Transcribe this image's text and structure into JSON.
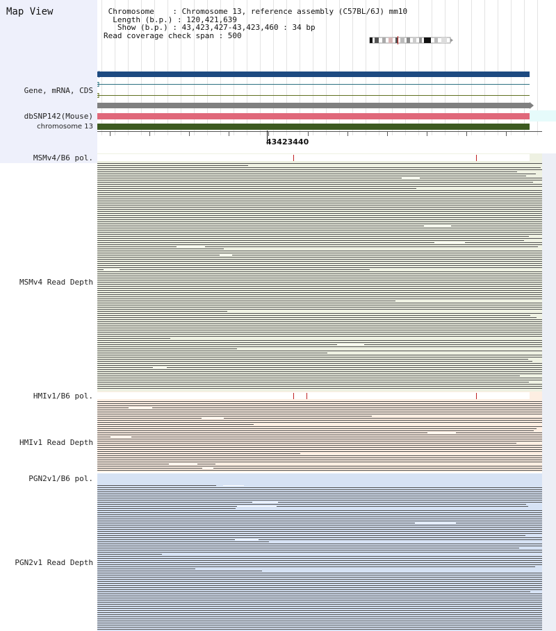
{
  "header": {
    "title": "Map View",
    "info_lines": [
      " Chromosome    : Chromosome 13, reference assembly (C57BL/6J) mm10",
      "  Length (b.p.) : 120,421,639",
      "   Show (b.p.) : 43,423,427-43,423,460 : 34 bp",
      "Read coverage check span : 500"
    ]
  },
  "ruler": {
    "position_label": "43423440"
  },
  "tracks": {
    "gene": "Gene, mRNA, CDS",
    "dbsnp": "dbSNP142(Mouse)",
    "chromosome": "chromosome 13",
    "msm_pol": "MSMv4/B6 pol.",
    "msm_depth": "MSMv4 Read Depth",
    "hmi_pol": "HMIv1/B6 pol.",
    "hmi_depth": "HMIv1 Read Depth",
    "pgn_pol": "PGN2v1/B6 pol.",
    "pgn_depth": "PGN2v1 Read Depth"
  },
  "colors": {
    "left_panel": "#eef0fb",
    "gene_bar": "#1d4a80",
    "dbsnp_bar": "#e0687a",
    "chromosome_bar": "#3c5a20",
    "gray_bar": "#808080",
    "msm_bg": "#eef1e2",
    "hmi_bg": "#fdeee2",
    "pgn_bg": "#d6e2f4",
    "read": "#505050",
    "snp_marker": "#c02020"
  }
}
